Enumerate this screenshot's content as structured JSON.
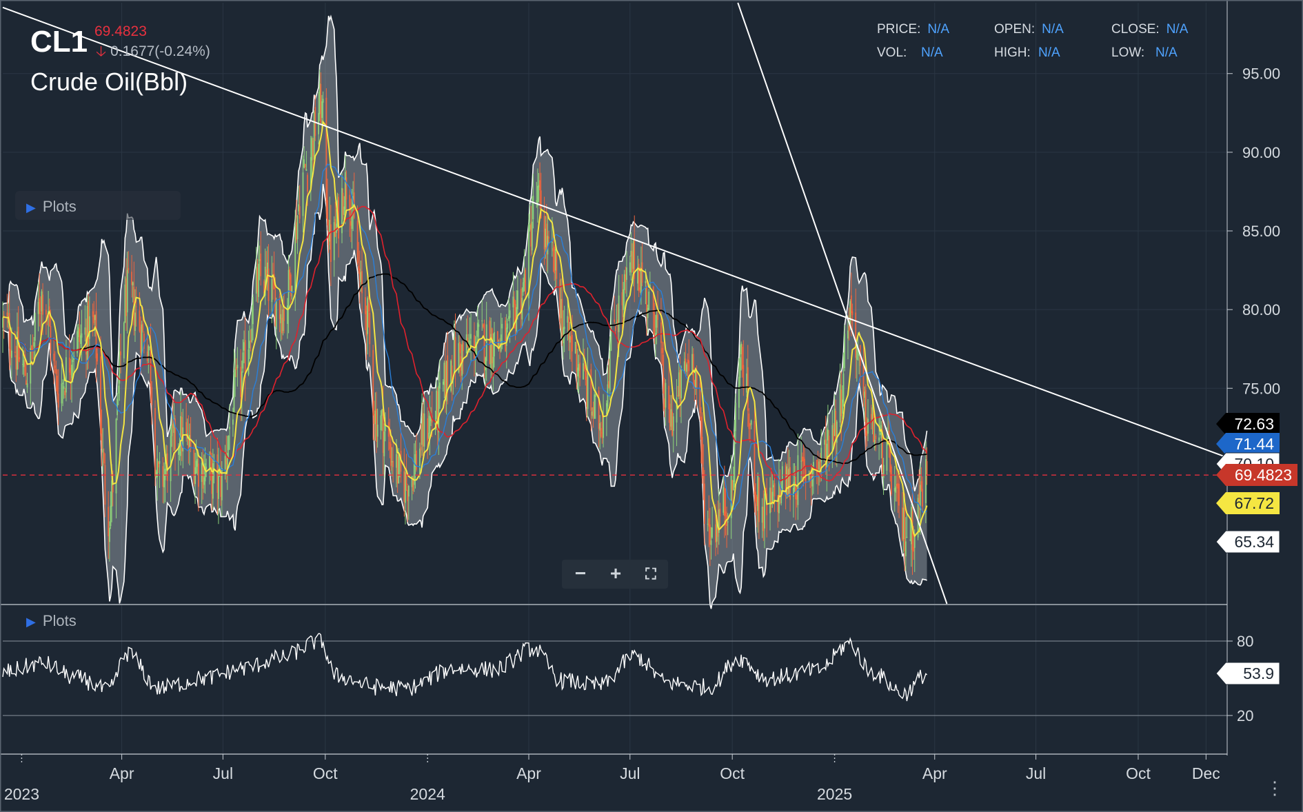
{
  "header": {
    "symbol": "CL1",
    "last_price": "69.4823",
    "change": "0.1677(-0.24%)",
    "name": "Crude Oil(Bbl)"
  },
  "ohlc": {
    "price_label": "PRICE:",
    "price_value": "N/A",
    "open_label": "OPEN:",
    "open_value": "N/A",
    "close_label": "CLOSE:",
    "close_value": "N/A",
    "vol_label": "VOL:",
    "vol_value": "N/A",
    "high_label": "HIGH:",
    "high_value": "N/A",
    "low_label": "LOW:",
    "low_value": "N/A"
  },
  "panels": {
    "main_plots_label": "Plots",
    "osc_plots_label": "Plots"
  },
  "colors": {
    "background": "#1d2733",
    "up": "#8ed37a",
    "down": "#f0653c",
    "sma_black": "#000000",
    "sma_red": "#e0222d",
    "sma_blue": "#2a7fd9",
    "sma_yellow": "#f5e642",
    "band": "#ffffff",
    "trendline": "#ffffff",
    "last_price_line": "#e8313f"
  },
  "icons": [
    "arrow-down-icon",
    "play-triangle-icon",
    "zoom-out-icon",
    "zoom-in-icon",
    "fullscreen-icon",
    "vertical-dots-icon"
  ],
  "chart_data": [
    {
      "type": "candlestick",
      "title": "Crude Oil(Bbl)",
      "x_axis": {
        "type": "date",
        "range": [
          "2022-12-15",
          "2025-12-20"
        ],
        "month_ticks": [
          {
            "date": "2023-04-01",
            "label": "Apr"
          },
          {
            "date": "2023-07-01",
            "label": "Jul"
          },
          {
            "date": "2023-10-01",
            "label": "Oct"
          },
          {
            "date": "2024-04-01",
            "label": "Apr"
          },
          {
            "date": "2024-07-01",
            "label": "Jul"
          },
          {
            "date": "2024-10-01",
            "label": "Oct"
          },
          {
            "date": "2025-04-01",
            "label": "Apr"
          },
          {
            "date": "2025-07-01",
            "label": "Jul"
          },
          {
            "date": "2025-10-01",
            "label": "Oct"
          },
          {
            "date": "2025-12-01",
            "label": "Dec"
          }
        ],
        "year_ticks": [
          {
            "date": "2023-01-01",
            "label": "2023"
          },
          {
            "date": "2024-01-01",
            "label": "2024"
          },
          {
            "date": "2025-01-01",
            "label": "2025"
          }
        ]
      },
      "y_axis": {
        "position": "right",
        "ylim": [
          61.3,
          99.5
        ],
        "ticks": [
          {
            "value": 75,
            "label": "75.00"
          },
          {
            "value": 80,
            "label": "80.00"
          },
          {
            "value": 85,
            "label": "85.00"
          },
          {
            "value": 90,
            "label": "90.00"
          },
          {
            "value": 95,
            "label": "95.00"
          }
        ]
      },
      "grid": true,
      "price_keypoints": [
        [
          "2022-12-15",
          79
        ],
        [
          "2023-01-06",
          76
        ],
        [
          "2023-01-20",
          81
        ],
        [
          "2023-02-03",
          75
        ],
        [
          "2023-02-20",
          78
        ],
        [
          "2023-03-06",
          79
        ],
        [
          "2023-03-20",
          67
        ],
        [
          "2023-04-06",
          81
        ],
        [
          "2023-04-24",
          78
        ],
        [
          "2023-05-04",
          69
        ],
        [
          "2023-05-22",
          72
        ],
        [
          "2023-06-12",
          70
        ],
        [
          "2023-06-28",
          69
        ],
        [
          "2023-07-14",
          75
        ],
        [
          "2023-08-04",
          82
        ],
        [
          "2023-08-24",
          80
        ],
        [
          "2023-09-14",
          89
        ],
        [
          "2023-09-27",
          93
        ],
        [
          "2023-10-06",
          84
        ],
        [
          "2023-10-20",
          88
        ],
        [
          "2023-11-06",
          80
        ],
        [
          "2023-11-16",
          73
        ],
        [
          "2023-12-12",
          69
        ],
        [
          "2024-01-05",
          73
        ],
        [
          "2024-01-26",
          77
        ],
        [
          "2024-02-16",
          78
        ],
        [
          "2024-03-12",
          78
        ],
        [
          "2024-03-25",
          81
        ],
        [
          "2024-04-08",
          87
        ],
        [
          "2024-04-22",
          83
        ],
        [
          "2024-05-06",
          78
        ],
        [
          "2024-06-04",
          73
        ],
        [
          "2024-06-20",
          80
        ],
        [
          "2024-07-05",
          83
        ],
        [
          "2024-07-22",
          80
        ],
        [
          "2024-08-05",
          73
        ],
        [
          "2024-08-26",
          77
        ],
        [
          "2024-09-10",
          66
        ],
        [
          "2024-09-30",
          68
        ],
        [
          "2024-10-07",
          77
        ],
        [
          "2024-10-28",
          67
        ],
        [
          "2024-11-20",
          69
        ],
        [
          "2024-12-16",
          70
        ],
        [
          "2025-01-03",
          73
        ],
        [
          "2025-01-15",
          80
        ],
        [
          "2025-01-30",
          73
        ],
        [
          "2025-02-14",
          71
        ],
        [
          "2025-03-05",
          66
        ],
        [
          "2025-03-11",
          66
        ],
        [
          "2025-03-25",
          69.5
        ]
      ],
      "overlays": [
        {
          "type": "bollinger_band",
          "color": "white"
        },
        {
          "type": "moving_average",
          "color": "yellow"
        },
        {
          "type": "moving_average",
          "color": "blue"
        },
        {
          "type": "moving_average",
          "color": "red"
        },
        {
          "type": "moving_average",
          "color": "black"
        }
      ],
      "trendlines": [
        {
          "from": [
            "2022-12-15",
            99.2
          ],
          "to": [
            "2025-12-20",
            70.6
          ]
        },
        {
          "from": [
            "2024-10-06",
            99.5
          ],
          "to": [
            "2025-04-12",
            61.3
          ]
        }
      ],
      "current_price": 69.4823,
      "price_labels": [
        {
          "value": 72.63,
          "label": "72.63",
          "bg": "#000000",
          "fg": "#ffffff"
        },
        {
          "value": 71.44,
          "label": "71.44",
          "bg": "#1d67c9",
          "fg": "#ffffff"
        },
        {
          "value": 70.1,
          "label": "70.10",
          "bg": "#ffffff",
          "fg": "#1d2733"
        },
        {
          "value": 69.4823,
          "label": "69.4823",
          "bg": "#c7372a",
          "fg": "#ffffff"
        },
        {
          "value": 67.72,
          "label": "67.72",
          "bg": "#f5e642",
          "fg": "#1d2733"
        },
        {
          "value": 65.34,
          "label": "65.34",
          "bg": "#ffffff",
          "fg": "#1d2733"
        }
      ]
    },
    {
      "type": "line",
      "title": "",
      "y_axis": {
        "ylim": [
          0,
          100
        ],
        "ticks": [
          {
            "value": 80,
            "label": "80"
          },
          {
            "value": 20,
            "label": "20"
          }
        ]
      },
      "keypoints": [
        [
          "2022-12-15",
          55
        ],
        [
          "2023-01-20",
          62
        ],
        [
          "2023-02-20",
          50
        ],
        [
          "2023-03-20",
          40
        ],
        [
          "2023-04-06",
          70
        ],
        [
          "2023-05-04",
          42
        ],
        [
          "2023-06-15",
          50
        ],
        [
          "2023-07-20",
          58
        ],
        [
          "2023-08-20",
          66
        ],
        [
          "2023-09-27",
          80
        ],
        [
          "2023-10-10",
          52
        ],
        [
          "2023-11-16",
          43
        ],
        [
          "2023-12-12",
          42
        ],
        [
          "2024-01-26",
          58
        ],
        [
          "2024-03-01",
          57
        ],
        [
          "2024-04-05",
          74
        ],
        [
          "2024-05-01",
          48
        ],
        [
          "2024-06-04",
          44
        ],
        [
          "2024-07-05",
          68
        ],
        [
          "2024-08-05",
          46
        ],
        [
          "2024-09-10",
          43
        ],
        [
          "2024-10-07",
          66
        ],
        [
          "2024-11-01",
          50
        ],
        [
          "2024-12-16",
          56
        ],
        [
          "2025-01-15",
          78
        ],
        [
          "2025-02-03",
          55
        ],
        [
          "2025-03-05",
          38
        ],
        [
          "2025-03-25",
          54
        ]
      ],
      "last_value": {
        "value": 53.9,
        "label": "53.9"
      }
    }
  ]
}
